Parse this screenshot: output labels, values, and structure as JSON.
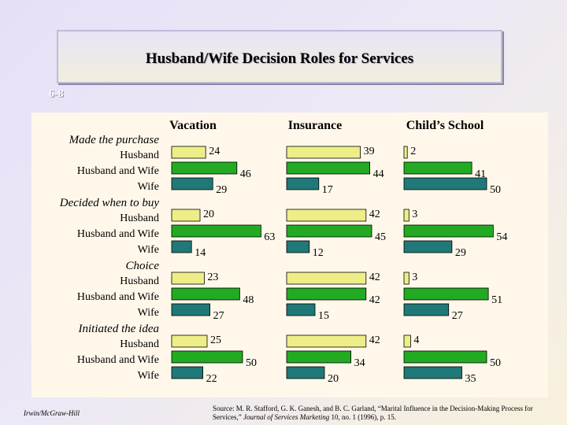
{
  "slide": {
    "title": "Husband/Wife Decision Roles for Services",
    "number": "6-8",
    "footer": "Irwin/McGraw-Hill",
    "source_prefix": "Source: M. R. Stafford, G. K. Ganesh, and B. C. Garland, “Marital Influence in the Decision-Making Process for Services,” ",
    "source_journal": "Journal of Services Marketing",
    "source_suffix": " 10, no. 1 (1996), p. 15."
  },
  "colors": {
    "husband": "#eeee88",
    "husband_and_wife": "#22aa22",
    "wife": "#207878"
  },
  "chart_data": {
    "type": "bar",
    "orientation": "horizontal",
    "panels": [
      "Vacation",
      "Insurance",
      "Child’s School"
    ],
    "row_labels": [
      "Husband",
      "Husband and Wife",
      "Wife"
    ],
    "groups": [
      {
        "label": "Made the purchase",
        "values": {
          "Vacation": [
            24,
            46,
            29
          ],
          "Insurance": [
            39,
            44,
            17
          ],
          "Child’s School": [
            2,
            41,
            50
          ]
        }
      },
      {
        "label": "Decided when to buy",
        "values": {
          "Vacation": [
            20,
            63,
            14
          ],
          "Insurance": [
            42,
            45,
            12
          ],
          "Child’s School": [
            3,
            54,
            29
          ]
        }
      },
      {
        "label": "Choice",
        "values": {
          "Vacation": [
            23,
            48,
            27
          ],
          "Insurance": [
            42,
            42,
            15
          ],
          "Child’s School": [
            3,
            51,
            27
          ]
        }
      },
      {
        "label": "Initiated the idea",
        "values": {
          "Vacation": [
            25,
            50,
            22
          ],
          "Insurance": [
            42,
            34,
            20
          ],
          "Child’s School": [
            4,
            50,
            35
          ]
        }
      }
    ]
  }
}
